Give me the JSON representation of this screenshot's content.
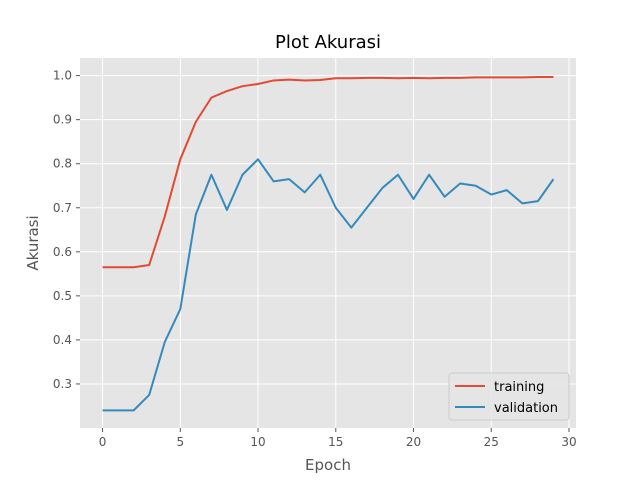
{
  "chart_data": {
    "type": "line",
    "title": "Plot Akurasi",
    "xlabel": "Epoch",
    "ylabel": "Akurasi",
    "xlim": [
      -1.45,
      30.45
    ],
    "ylim": [
      0.2,
      1.04
    ],
    "xticks": [
      0,
      5,
      10,
      15,
      20,
      25,
      30
    ],
    "yticks": [
      0.3,
      0.4,
      0.5,
      0.6,
      0.7,
      0.8,
      0.9,
      1.0
    ],
    "ytick_labels": [
      "0.3",
      "0.4",
      "0.5",
      "0.6",
      "0.7",
      "0.8",
      "0.9",
      "1.0"
    ],
    "grid": true,
    "legend_position": "bottom-right",
    "x": [
      0,
      1,
      2,
      3,
      4,
      5,
      6,
      7,
      8,
      9,
      10,
      11,
      12,
      13,
      14,
      15,
      16,
      17,
      18,
      19,
      20,
      21,
      22,
      23,
      24,
      25,
      26,
      27,
      28,
      29
    ],
    "series": [
      {
        "name": "training",
        "color": "#E24A33",
        "values": [
          0.565,
          0.565,
          0.565,
          0.57,
          0.68,
          0.81,
          0.895,
          0.95,
          0.965,
          0.976,
          0.981,
          0.989,
          0.991,
          0.989,
          0.99,
          0.994,
          0.994,
          0.995,
          0.995,
          0.994,
          0.995,
          0.994,
          0.995,
          0.995,
          0.996,
          0.996,
          0.996,
          0.996,
          0.997,
          0.997
        ]
      },
      {
        "name": "validation",
        "color": "#348ABD",
        "values": [
          0.24,
          0.24,
          0.24,
          0.275,
          0.395,
          0.47,
          0.685,
          0.775,
          0.695,
          0.775,
          0.81,
          0.76,
          0.765,
          0.735,
          0.775,
          0.7,
          0.655,
          0.7,
          0.745,
          0.775,
          0.72,
          0.775,
          0.725,
          0.755,
          0.75,
          0.73,
          0.74,
          0.71,
          0.715,
          0.765
        ]
      }
    ]
  }
}
